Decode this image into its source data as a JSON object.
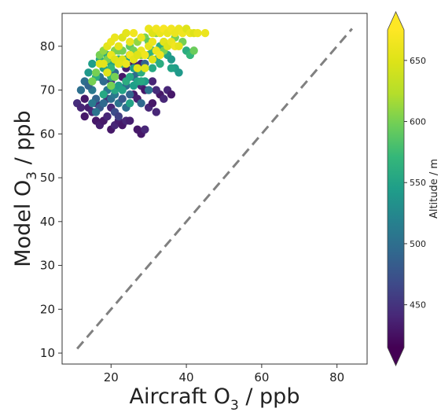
{
  "chart_data": {
    "type": "scatter",
    "xlabel": "Aircraft O3 / ppb",
    "ylabel": "Model O3 / ppb",
    "xlabel_parts": {
      "pre": "Aircraft O",
      "sub": "3",
      "post": " / ppb"
    },
    "ylabel_parts": {
      "pre": "Model O",
      "sub": "3",
      "post": " / ppb"
    },
    "xlim": [
      7,
      88
    ],
    "ylim": [
      7.5,
      87.5
    ],
    "xticks": [
      "20",
      "40",
      "60",
      "80"
    ],
    "xtick_values": [
      20,
      40,
      60,
      80
    ],
    "yticks": [
      "10",
      "20",
      "30",
      "40",
      "50",
      "60",
      "70",
      "80"
    ],
    "ytick_values": [
      10,
      20,
      30,
      40,
      50,
      60,
      70,
      80
    ],
    "grid": false,
    "reference_line": {
      "style": "dashed",
      "color": "#808080",
      "x": [
        11,
        84
      ],
      "y": [
        11,
        84
      ]
    },
    "colorbar": {
      "label": "Altitude / m",
      "colormap": "viridis",
      "range": [
        415,
        675
      ],
      "ticks": [
        "450",
        "500",
        "550",
        "600",
        "650"
      ],
      "tick_values": [
        450,
        500,
        550,
        600,
        650
      ],
      "extend": "both"
    },
    "series": [
      {
        "marker": "circle",
        "points": [
          [
            11,
            67,
            445
          ],
          [
            12,
            66,
            440
          ],
          [
            13,
            68,
            430
          ],
          [
            14,
            66,
            435
          ],
          [
            15,
            65,
            440
          ],
          [
            13,
            64,
            430
          ],
          [
            16,
            63,
            430
          ],
          [
            17,
            62,
            435
          ],
          [
            18,
            63,
            430
          ],
          [
            19,
            64,
            440
          ],
          [
            20,
            61,
            430
          ],
          [
            21,
            62,
            440
          ],
          [
            22,
            63,
            435
          ],
          [
            23,
            62,
            430
          ],
          [
            24,
            63,
            440
          ],
          [
            20,
            66,
            440
          ],
          [
            19,
            68,
            445
          ],
          [
            16,
            67,
            440
          ],
          [
            21,
            65,
            470
          ],
          [
            22,
            64,
            460
          ],
          [
            27,
            61,
            430
          ],
          [
            28,
            60,
            430
          ],
          [
            29,
            61,
            440
          ],
          [
            25,
            63,
            435
          ],
          [
            30,
            66,
            440
          ],
          [
            31,
            67,
            430
          ],
          [
            32,
            65,
            440
          ],
          [
            33,
            69,
            430
          ],
          [
            35,
            70,
            440
          ],
          [
            36,
            69,
            430
          ],
          [
            26,
            69,
            430
          ],
          [
            27,
            68,
            435
          ],
          [
            28,
            71,
            440
          ],
          [
            29,
            70,
            430
          ],
          [
            23,
            73,
            430
          ],
          [
            24,
            75,
            435
          ],
          [
            26,
            76,
            430
          ],
          [
            25,
            78,
            430
          ],
          [
            28,
            76,
            435
          ],
          [
            31,
            72,
            440
          ],
          [
            32,
            70,
            445
          ],
          [
            34,
            68,
            440
          ],
          [
            20,
            72,
            460
          ],
          [
            12,
            70,
            500
          ],
          [
            13,
            72,
            500
          ],
          [
            15,
            70,
            510
          ],
          [
            16,
            68,
            490
          ],
          [
            17,
            66,
            480
          ],
          [
            18,
            67,
            495
          ],
          [
            14,
            71,
            490
          ],
          [
            17,
            73,
            505
          ],
          [
            18,
            72,
            495
          ],
          [
            19,
            70,
            510
          ],
          [
            20,
            68,
            500
          ],
          [
            21,
            69,
            510
          ],
          [
            22,
            67,
            505
          ],
          [
            16,
            65,
            505
          ],
          [
            15,
            67,
            510
          ],
          [
            21,
            74,
            495
          ],
          [
            24,
            71,
            500
          ],
          [
            25,
            69,
            490
          ],
          [
            23,
            68,
            480
          ],
          [
            26,
            73,
            485
          ],
          [
            27,
            74,
            500
          ],
          [
            29,
            76,
            490
          ],
          [
            30,
            70,
            505
          ],
          [
            28,
            67,
            495
          ],
          [
            24,
            66,
            500
          ],
          [
            19,
            74,
            480
          ],
          [
            14,
            74,
            540
          ],
          [
            15,
            76,
            545
          ],
          [
            17,
            77,
            555
          ],
          [
            18,
            75,
            550
          ],
          [
            20,
            73,
            560
          ],
          [
            21,
            70,
            555
          ],
          [
            22,
            71,
            545
          ],
          [
            23,
            70,
            550
          ],
          [
            24,
            72,
            560
          ],
          [
            25,
            73,
            555
          ],
          [
            26,
            71,
            545
          ],
          [
            27,
            72,
            550
          ],
          [
            28,
            74,
            560
          ],
          [
            29,
            72,
            545
          ],
          [
            30,
            78,
            560
          ],
          [
            31,
            79,
            565
          ],
          [
            32,
            77,
            555
          ],
          [
            33,
            80,
            560
          ],
          [
            34,
            81,
            570
          ],
          [
            35,
            78,
            550
          ],
          [
            36,
            77,
            540
          ],
          [
            37,
            75,
            545
          ],
          [
            38,
            74,
            540
          ],
          [
            40,
            79,
            560
          ],
          [
            41,
            78,
            570
          ],
          [
            24,
            77,
            545
          ],
          [
            22,
            77,
            560
          ],
          [
            19,
            78,
            555
          ],
          [
            16,
            73,
            560
          ],
          [
            20,
            76,
            550
          ],
          [
            26,
            75,
            545
          ],
          [
            28,
            72,
            555
          ],
          [
            33,
            76,
            560
          ],
          [
            36,
            75,
            550
          ],
          [
            18,
            69,
            555
          ],
          [
            20,
            75,
            570
          ],
          [
            31,
            75,
            555
          ],
          [
            25,
            67,
            550
          ],
          [
            23,
            76,
            565
          ],
          [
            15,
            72,
            600
          ],
          [
            16,
            74,
            600
          ],
          [
            17,
            78,
            600
          ],
          [
            18,
            79,
            610
          ],
          [
            19,
            77,
            600
          ],
          [
            21,
            79,
            605
          ],
          [
            23,
            79,
            600
          ],
          [
            25,
            80,
            590
          ],
          [
            27,
            81,
            610
          ],
          [
            29,
            82,
            600
          ],
          [
            30,
            81,
            590
          ],
          [
            32,
            83,
            605
          ],
          [
            39,
            81,
            600
          ],
          [
            42,
            79,
            595
          ],
          [
            21,
            73,
            600
          ],
          [
            22,
            79,
            600
          ],
          [
            34,
            79,
            600
          ],
          [
            28,
            78,
            610
          ],
          [
            26,
            79,
            600
          ],
          [
            20,
            71,
            600
          ],
          [
            37,
            82,
            600
          ],
          [
            17,
            76,
            650
          ],
          [
            18,
            76,
            655
          ],
          [
            19,
            80,
            655
          ],
          [
            20,
            81,
            660
          ],
          [
            21,
            82,
            660
          ],
          [
            23,
            82,
            650
          ],
          [
            24,
            83,
            655
          ],
          [
            26,
            83,
            665
          ],
          [
            28,
            82,
            660
          ],
          [
            30,
            84,
            660
          ],
          [
            31,
            83,
            650
          ],
          [
            32,
            84,
            665
          ],
          [
            33,
            83,
            660
          ],
          [
            34,
            84,
            670
          ],
          [
            35,
            83,
            660
          ],
          [
            36,
            84,
            665
          ],
          [
            37,
            83,
            660
          ],
          [
            38,
            84,
            660
          ],
          [
            39,
            83,
            665
          ],
          [
            40,
            84,
            650
          ],
          [
            41,
            83,
            660
          ],
          [
            42,
            83,
            650
          ],
          [
            43,
            83,
            660
          ],
          [
            45,
            83,
            660
          ],
          [
            19,
            74,
            650
          ],
          [
            20,
            78,
            660
          ],
          [
            21,
            77,
            650
          ],
          [
            22,
            80,
            655
          ],
          [
            23,
            77,
            650
          ],
          [
            24,
            76,
            660
          ],
          [
            25,
            78,
            665
          ],
          [
            26,
            77,
            655
          ],
          [
            27,
            75,
            650
          ],
          [
            28,
            79,
            660
          ],
          [
            29,
            78,
            665
          ],
          [
            30,
            80,
            655
          ],
          [
            31,
            77,
            650
          ],
          [
            32,
            79,
            660
          ],
          [
            33,
            78,
            665
          ],
          [
            34,
            81,
            655
          ],
          [
            35,
            80,
            650
          ],
          [
            36,
            81,
            660
          ],
          [
            37,
            80,
            665
          ],
          [
            38,
            80,
            655
          ],
          [
            27,
            78,
            650
          ],
          [
            31,
            81,
            660
          ],
          [
            29,
            75,
            650
          ],
          [
            22,
            76,
            655
          ],
          [
            25,
            81,
            660
          ]
        ]
      }
    ]
  }
}
